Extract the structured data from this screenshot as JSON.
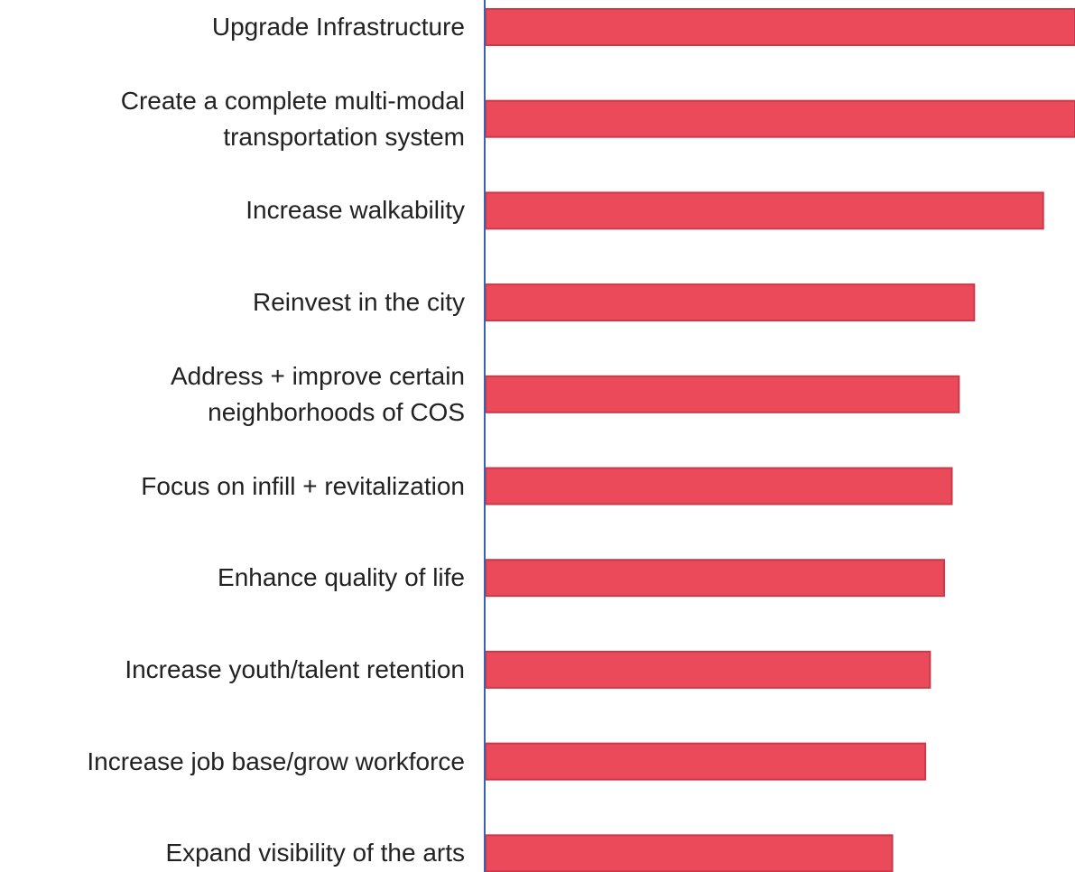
{
  "chart_data": {
    "type": "bar",
    "orientation": "horizontal",
    "categories": [
      "Upgrade Infrastructure",
      "Create a complete multi-modal\ntransportation system",
      "Increase walkability",
      "Reinvest in the city",
      "Address + improve certain\nneighborhoods of COS",
      "Focus on infill + revitalization",
      "Enhance quality of life",
      "Increase youth/talent retention",
      "Increase job base/grow workforce",
      "Expand visibility of the arts"
    ],
    "values": [
      100,
      100,
      94.6,
      82.9,
      80.3,
      79.1,
      77.8,
      75.4,
      74.6,
      69.0
    ],
    "color": "#ea4a5a",
    "axis_color": "#3a62b0",
    "xlim": [
      0,
      100
    ]
  }
}
